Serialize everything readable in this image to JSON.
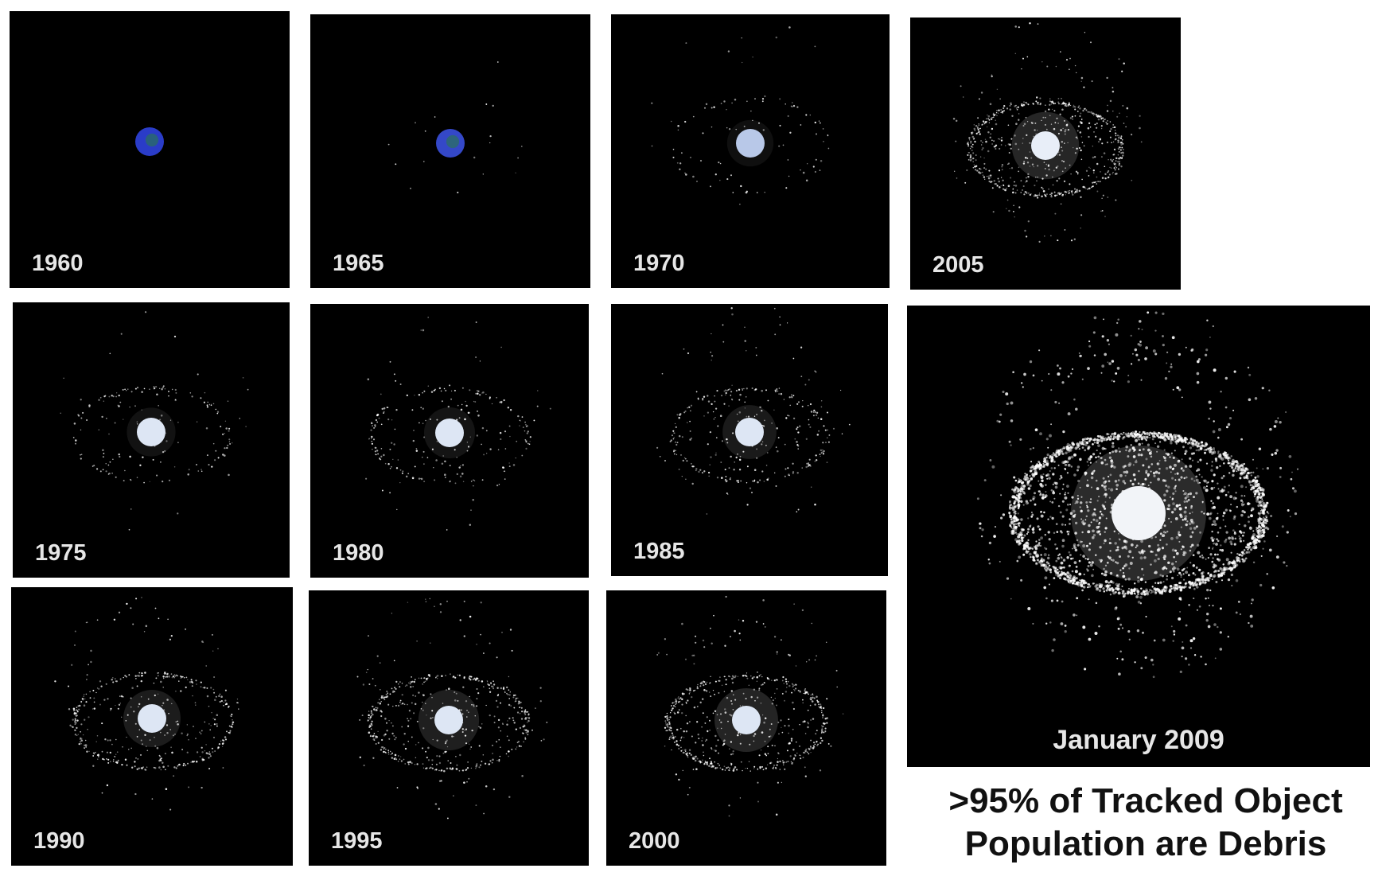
{
  "panels": [
    {
      "id": "p1960",
      "year_label": "1960",
      "debris_level": 0.0,
      "earth_color": "#2a3cc8"
    },
    {
      "id": "p1965",
      "year_label": "1965",
      "debris_level": 0.02,
      "earth_color": "#3448c8"
    },
    {
      "id": "p1970",
      "year_label": "1970",
      "debris_level": 0.12,
      "earth_color": "#b8c8e8"
    },
    {
      "id": "p2005",
      "year_label": "2005",
      "debris_level": 0.85,
      "earth_color": "#e8eef8"
    },
    {
      "id": "p1975",
      "year_label": "1975",
      "debris_level": 0.2,
      "earth_color": "#dde6f4"
    },
    {
      "id": "p1980",
      "year_label": "1980",
      "debris_level": 0.28,
      "earth_color": "#dde6f4"
    },
    {
      "id": "p1985",
      "year_label": "1985",
      "debris_level": 0.38,
      "earth_color": "#dde6f4"
    },
    {
      "id": "p1990",
      "year_label": "1990",
      "debris_level": 0.5,
      "earth_color": "#dde6f4"
    },
    {
      "id": "p1995",
      "year_label": "1995",
      "debris_level": 0.62,
      "earth_color": "#dde6f4"
    },
    {
      "id": "p2000",
      "year_label": "2000",
      "debris_level": 0.72,
      "earth_color": "#dde6f4"
    },
    {
      "id": "p2009",
      "year_label": "January 2009",
      "debris_level": 1.0,
      "earth_color": "#f2f4f8"
    }
  ],
  "caption": {
    "line1": ">95% of Tracked Object",
    "line2": "Population are Debris"
  }
}
